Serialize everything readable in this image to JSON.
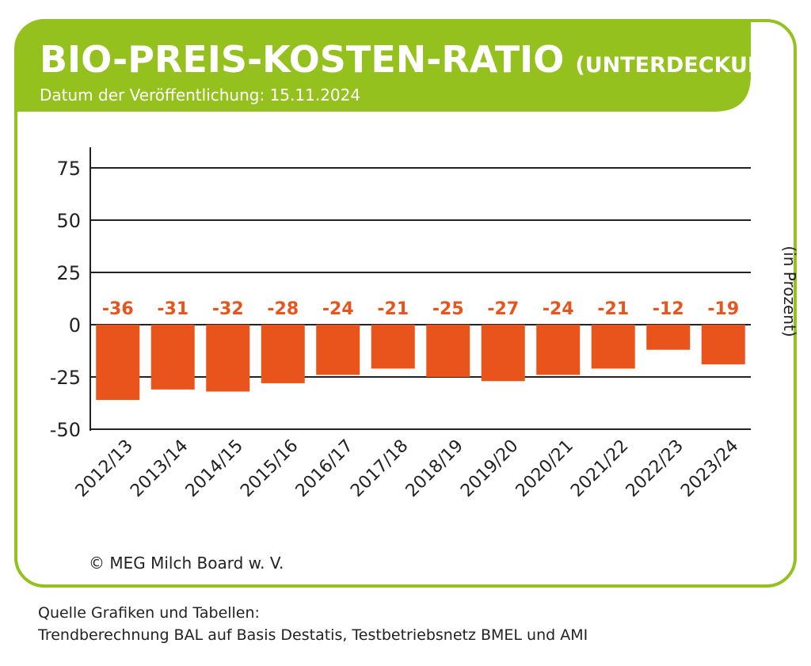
{
  "header": {
    "title": "BIO-PREIS-KOSTEN-RATIO",
    "title_suffix": "(UNTERDECKUNG)",
    "subtitle": "Datum der Veröffentlichung: 15.11.2024"
  },
  "colors": {
    "accent_green": "#95c11f",
    "bar": "#e8541c",
    "grid": "#222222"
  },
  "chart_data": {
    "type": "bar",
    "categories": [
      "2012/13",
      "2013/14",
      "2014/15",
      "2015/16",
      "2016/17",
      "2017/18",
      "2018/19",
      "2019/20",
      "2020/21",
      "2021/22",
      "2022/23",
      "2023/24"
    ],
    "values": [
      -36,
      -31,
      -32,
      -28,
      -24,
      -21,
      -25,
      -27,
      -24,
      -21,
      -12,
      -19
    ],
    "ylabel": "(in Prozent)",
    "ylim": [
      -50,
      85
    ],
    "yticks": [
      75,
      50,
      25,
      0,
      -25,
      -50
    ],
    "grid": true
  },
  "copyright": "© MEG Milch Board w. V.",
  "source": {
    "line1": "Quelle Grafiken und Tabellen:",
    "line2": "Trendberechnung BAL auf Basis Destatis, Testbetriebsnetz BMEL und AMI"
  }
}
